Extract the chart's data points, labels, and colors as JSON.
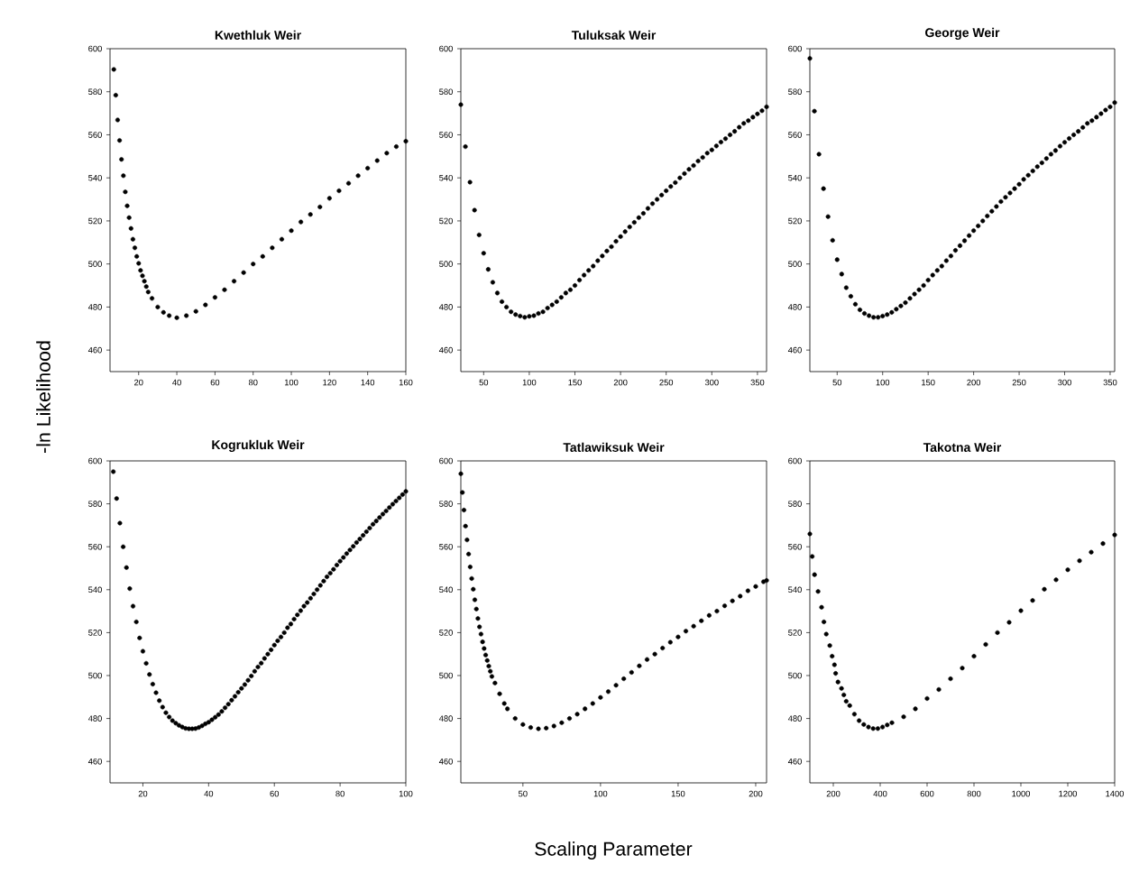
{
  "chart_data": [
    {
      "type": "scatter",
      "title": "Kwethluk Weir",
      "ylabel": "-ln Likelihood",
      "color": "#000000",
      "xlim": [
        5,
        160
      ],
      "ylim": [
        450,
        600
      ],
      "xticks": [
        20,
        40,
        60,
        80,
        100,
        120,
        140,
        160
      ],
      "yticks": [
        460,
        480,
        500,
        520,
        540,
        560,
        580,
        600
      ],
      "x": [
        7,
        8,
        9,
        10,
        11,
        12,
        13,
        14,
        15,
        16,
        17,
        18,
        19,
        20,
        21,
        22,
        23,
        24,
        25,
        27,
        30,
        33,
        36,
        40,
        45,
        50,
        55,
        60,
        65,
        70,
        75,
        80,
        85,
        90,
        95,
        100,
        105,
        110,
        115,
        120,
        125,
        130,
        135,
        140,
        145,
        150,
        155,
        160
      ],
      "values": [
        590.4,
        578.4,
        566.9,
        557.4,
        548.6,
        541,
        533.5,
        527,
        521.5,
        516.5,
        511.5,
        507.5,
        503.5,
        500.3,
        497,
        494.5,
        492,
        489.5,
        487,
        484,
        480,
        477.5,
        476,
        475,
        476,
        478,
        481,
        484.5,
        488,
        492,
        496,
        500,
        503.5,
        507.5,
        511.5,
        515.5,
        519.5,
        523,
        526.5,
        530.5,
        534,
        537.5,
        541,
        544.5,
        548,
        551.5,
        554.5,
        557
      ]
    },
    {
      "type": "scatter",
      "title": "Tuluksak Weir",
      "color": "#000000",
      "xlim": [
        25,
        360
      ],
      "ylim": [
        450,
        600
      ],
      "xticks": [
        50,
        100,
        150,
        200,
        250,
        300,
        350
      ],
      "yticks": [
        460,
        480,
        500,
        520,
        540,
        560,
        580,
        600
      ],
      "x": [
        25,
        30,
        35,
        40,
        45,
        50,
        55,
        60,
        65,
        70,
        75,
        80,
        85,
        90,
        95,
        100,
        105,
        110,
        115,
        120,
        125,
        130,
        135,
        140,
        145,
        150,
        155,
        160,
        165,
        170,
        175,
        180,
        185,
        190,
        195,
        200,
        205,
        210,
        215,
        220,
        225,
        230,
        235,
        240,
        245,
        250,
        255,
        260,
        265,
        270,
        275,
        280,
        285,
        290,
        295,
        300,
        305,
        310,
        315,
        320,
        325,
        330,
        335,
        340,
        345,
        350,
        355,
        360
      ],
      "values": [
        574,
        554.5,
        538,
        525,
        513.5,
        505,
        497.5,
        491.5,
        486.5,
        482.5,
        480,
        477.8,
        476.5,
        475.8,
        475.2,
        475.7,
        476,
        477,
        477.8,
        479.5,
        481,
        482.5,
        484.5,
        486.5,
        488,
        490,
        492.5,
        494.8,
        497,
        499,
        501.5,
        503.7,
        506,
        508,
        510.5,
        512.7,
        515,
        517.2,
        519.3,
        521.5,
        523.5,
        525.8,
        528,
        530,
        532,
        534,
        536,
        537.8,
        540,
        542,
        544,
        545.7,
        547.8,
        549.5,
        551.5,
        553,
        554.8,
        556.6,
        558.2,
        560,
        561.6,
        563.5,
        565.3,
        566.6,
        568.2,
        569.7,
        571.2,
        573
      ]
    },
    {
      "type": "scatter",
      "title": "George Weir",
      "color": "#000000",
      "xlim": [
        20,
        355
      ],
      "ylim": [
        450,
        600
      ],
      "xticks": [
        50,
        100,
        150,
        200,
        250,
        300,
        350
      ],
      "yticks": [
        460,
        480,
        500,
        520,
        540,
        560,
        580,
        600
      ],
      "x": [
        20,
        25,
        30,
        35,
        40,
        45,
        50,
        55,
        60,
        65,
        70,
        75,
        80,
        85,
        90,
        95,
        100,
        105,
        110,
        115,
        120,
        125,
        130,
        135,
        140,
        145,
        150,
        155,
        160,
        165,
        170,
        175,
        180,
        185,
        190,
        195,
        200,
        205,
        210,
        215,
        220,
        225,
        230,
        235,
        240,
        245,
        250,
        255,
        260,
        265,
        270,
        275,
        280,
        285,
        290,
        295,
        300,
        305,
        310,
        315,
        320,
        325,
        330,
        335,
        340,
        345,
        350,
        355
      ],
      "values": [
        595.5,
        571,
        551,
        535,
        522,
        511,
        502,
        495.3,
        489,
        485,
        481.3,
        478.7,
        477,
        476,
        475.2,
        475.2,
        475.8,
        476.5,
        477.5,
        479,
        480.5,
        482,
        484,
        486,
        488,
        490,
        492.5,
        494.8,
        497,
        499,
        501.5,
        503.7,
        506.3,
        508.5,
        510.8,
        513.2,
        515.5,
        517.7,
        520,
        522.3,
        524.5,
        526.7,
        529,
        531,
        533,
        535,
        537,
        539.3,
        541.2,
        543.2,
        545.2,
        547,
        549,
        551,
        552.7,
        554.7,
        556.5,
        558.3,
        560,
        561.6,
        563.4,
        565.3,
        566.6,
        568.2,
        569.8,
        571.5,
        573,
        575
      ]
    },
    {
      "type": "scatter",
      "title": "Kogrukluk Weir",
      "color": "#000000",
      "xlim": [
        10,
        100
      ],
      "ylim": [
        450,
        600
      ],
      "xticks": [
        20,
        40,
        60,
        80,
        100
      ],
      "yticks": [
        460,
        480,
        500,
        520,
        540,
        560,
        580,
        600
      ],
      "x": [
        11,
        12,
        13,
        14,
        15,
        16,
        17,
        18,
        19,
        20,
        21,
        22,
        23,
        24,
        25,
        26,
        27,
        28,
        29,
        30,
        31,
        32,
        33,
        34,
        35,
        36,
        37,
        38,
        39,
        40,
        41,
        42,
        43,
        44,
        45,
        46,
        47,
        48,
        49,
        50,
        51,
        52,
        53,
        54,
        55,
        56,
        57,
        58,
        59,
        60,
        61,
        62,
        63,
        64,
        65,
        66,
        67,
        68,
        69,
        70,
        71,
        72,
        73,
        74,
        75,
        76,
        77,
        78,
        79,
        80,
        81,
        82,
        83,
        84,
        85,
        86,
        87,
        88,
        89,
        90,
        91,
        92,
        93,
        94,
        95,
        96,
        97,
        98,
        99,
        100
      ],
      "values": [
        595,
        582.5,
        571,
        560,
        550.3,
        540.5,
        532.3,
        525,
        517.5,
        511.3,
        505.7,
        500.5,
        496,
        492,
        488.3,
        485.3,
        482.7,
        480.7,
        479,
        477.8,
        476.8,
        476,
        475.4,
        475.2,
        475.2,
        475.3,
        475.8,
        476.6,
        477.5,
        478.3,
        479.4,
        480.6,
        481.8,
        483.3,
        485,
        486.7,
        488.5,
        490.3,
        492.2,
        494,
        495.8,
        497.8,
        499.8,
        502,
        504,
        505.8,
        508,
        510,
        512,
        514.2,
        516.2,
        518,
        520,
        522.3,
        524,
        526.3,
        528.3,
        530.2,
        532.3,
        534,
        536,
        538,
        540,
        542,
        544,
        546,
        547.7,
        549.5,
        551.5,
        553.3,
        555,
        556.8,
        558.5,
        560.2,
        562,
        563.6,
        565.3,
        567,
        568.7,
        570.5,
        572,
        573.6,
        575.2,
        576.7,
        578.3,
        579.8,
        581.3,
        582.8,
        584.3,
        585.8
      ]
    },
    {
      "type": "scatter",
      "title": "Tatlawiksuk Weir",
      "xlabel": "Scaling Parameter",
      "color": "#000000",
      "xlim": [
        10,
        207
      ],
      "ylim": [
        450,
        600
      ],
      "xticks": [
        50,
        100,
        150,
        200
      ],
      "yticks": [
        460,
        480,
        500,
        520,
        540,
        560,
        580,
        600
      ],
      "x": [
        10,
        11,
        12,
        13,
        14,
        15,
        16,
        17,
        18,
        19,
        20,
        21,
        22,
        23,
        24,
        25,
        26,
        27,
        28,
        29,
        30,
        32,
        35,
        38,
        40,
        45,
        50,
        55,
        60,
        65,
        70,
        75,
        80,
        85,
        90,
        95,
        100,
        105,
        110,
        115,
        120,
        125,
        130,
        135,
        140,
        145,
        150,
        155,
        160,
        165,
        170,
        175,
        180,
        185,
        190,
        195,
        200,
        205,
        207
      ],
      "values": [
        594,
        585.3,
        577.1,
        569.6,
        563.2,
        556.6,
        550.6,
        545.2,
        540.2,
        535.3,
        531,
        526.6,
        522.7,
        519.3,
        515.7,
        512.6,
        509.6,
        507,
        504.4,
        502,
        499.6,
        496.5,
        491.5,
        487,
        484.5,
        480,
        477.2,
        475.8,
        475.2,
        475.5,
        476.5,
        478,
        480,
        482,
        484.5,
        487,
        489.8,
        492.5,
        495.5,
        498.5,
        501.5,
        504.5,
        507.5,
        510,
        512.8,
        515.5,
        518,
        520.7,
        523,
        525.5,
        528,
        530,
        532.5,
        534.8,
        537,
        539.5,
        541.5,
        543.7,
        544.3
      ]
    },
    {
      "type": "scatter",
      "title": "Takotna Weir",
      "color": "#000000",
      "xlim": [
        100,
        1400
      ],
      "ylim": [
        450,
        600
      ],
      "xticks": [
        200,
        400,
        600,
        800,
        1000,
        1200,
        1400
      ],
      "yticks": [
        460,
        480,
        500,
        520,
        540,
        560,
        580,
        600
      ],
      "x": [
        100,
        110,
        120,
        135,
        150,
        160,
        170,
        185,
        195,
        205,
        210,
        220,
        235,
        245,
        255,
        270,
        290,
        310,
        330,
        350,
        370,
        390,
        410,
        430,
        450,
        500,
        550,
        600,
        650,
        700,
        750,
        800,
        850,
        900,
        950,
        1000,
        1050,
        1100,
        1150,
        1200,
        1250,
        1300,
        1350,
        1400
      ],
      "values": [
        566,
        555.5,
        547,
        539.2,
        531.8,
        525,
        519.3,
        514,
        509,
        505,
        501,
        497,
        494,
        491,
        488,
        486,
        482,
        479,
        477.2,
        476,
        475.3,
        475.3,
        476,
        477,
        478,
        480.8,
        484.5,
        489.3,
        493.5,
        498.5,
        503.5,
        509,
        514.5,
        520,
        524.8,
        530.2,
        535,
        540.2,
        544.6,
        549.3,
        553.5,
        557.5,
        561.5,
        565.5
      ]
    }
  ]
}
